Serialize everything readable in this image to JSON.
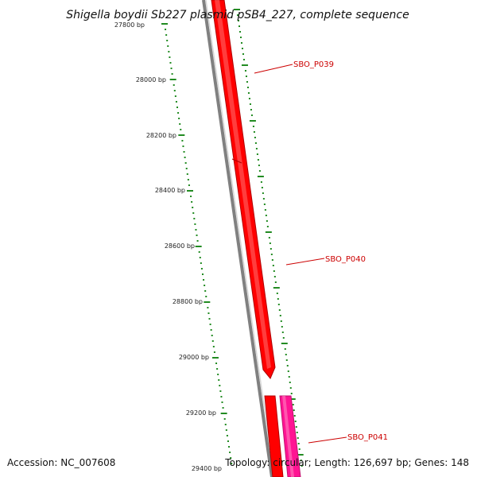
{
  "title": "Shigella boydii Sb227 plasmid pSB4_227, complete sequence",
  "accession_text": "Accession: NC_007608",
  "summary_text": "Topology: circular; Length: 126,697 bp; Genes: 148",
  "tick_labels": [
    "27800 bp",
    "28000 bp",
    "28200 bp",
    "28400 bp",
    "28600 bp",
    "28800 bp",
    "29000 bp",
    "29200 bp",
    "29400 bp"
  ],
  "genes": [
    {
      "label": "SBO_P039",
      "color": "#ff0000"
    },
    {
      "label": "SBO_P040",
      "color": "#ff0000"
    },
    {
      "label": "SBO_P041",
      "color": "#ff1493"
    }
  ],
  "colors": {
    "backbone": "#808080",
    "tick": "#228b22",
    "gene_red": "#ff0000",
    "gene_pink": "#ff1493",
    "label_red": "#cc0000"
  }
}
